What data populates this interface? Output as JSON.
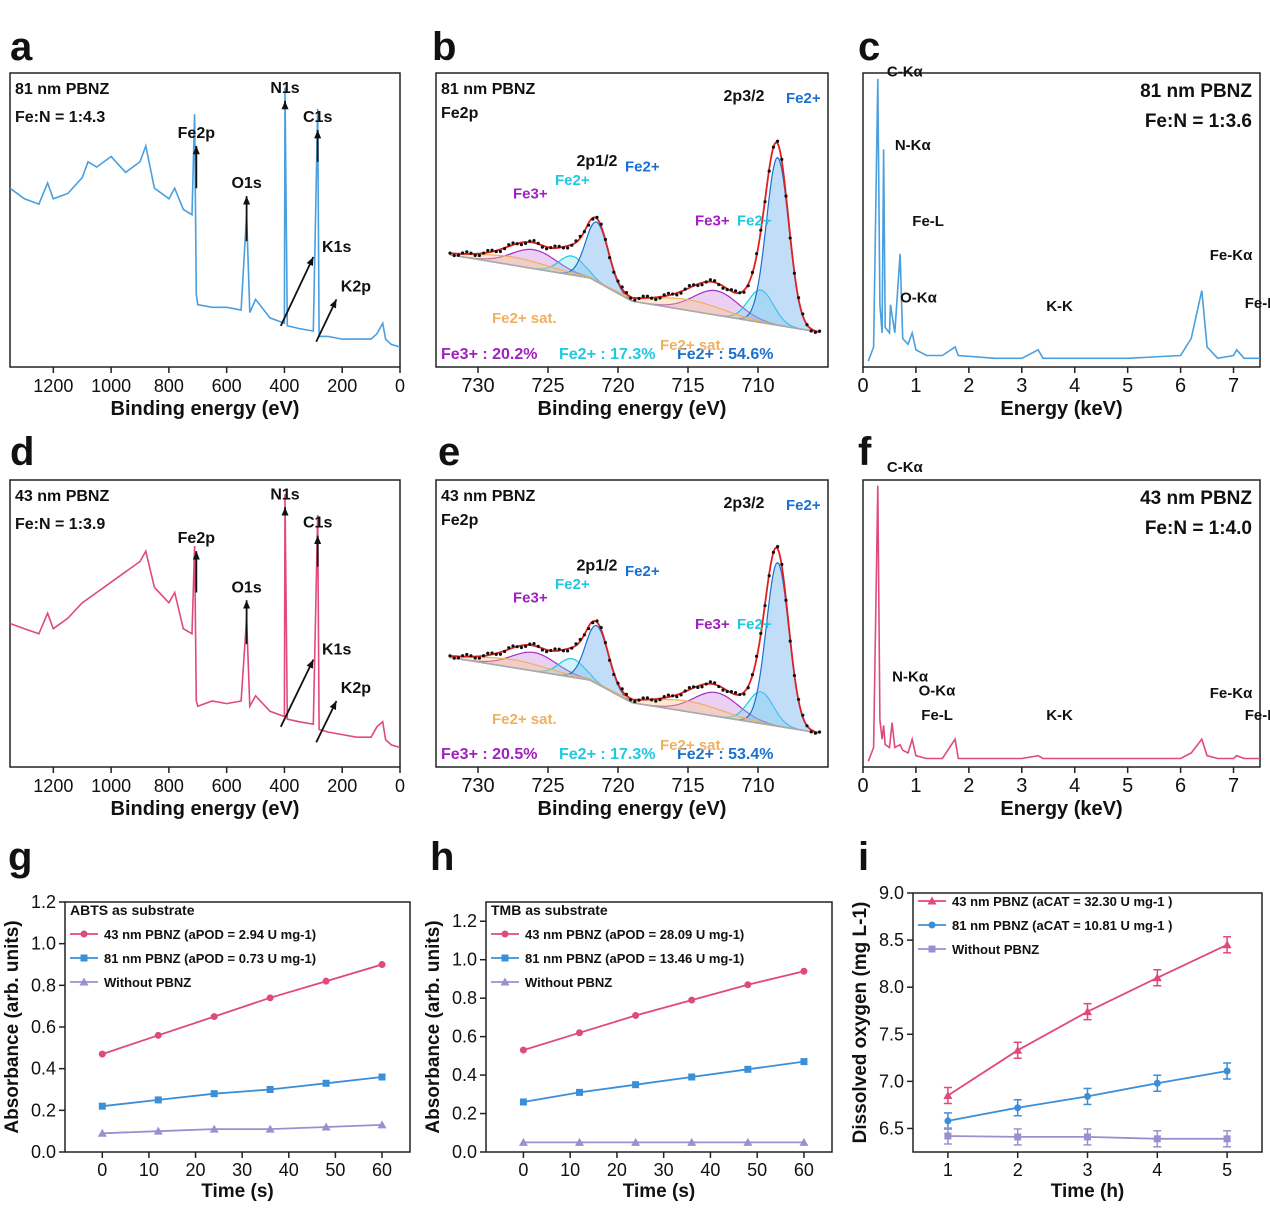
{
  "chart_data": [
    {
      "panel": "a",
      "type": "line",
      "title": "81 nm PBNZ",
      "subtitle": "Fe:N = 1:4.3",
      "xlabel": "Binding energy (eV)",
      "ylabel": "",
      "xlim": [
        1350,
        0
      ],
      "reversed_x": true,
      "xticks": [
        1200,
        1000,
        800,
        600,
        400,
        200,
        0
      ],
      "color": "#4a9fdf",
      "series": [
        {
          "name": "XPS survey",
          "x": [
            1350,
            1300,
            1250,
            1220,
            1200,
            1150,
            1100,
            1080,
            1050,
            1000,
            950,
            900,
            880,
            850,
            800,
            780,
            750,
            720,
            711,
            705,
            700,
            650,
            600,
            550,
            531,
            520,
            500,
            450,
            400,
            398,
            390,
            350,
            300,
            285,
            280,
            250,
            200,
            150,
            100,
            80,
            60,
            50,
            30,
            0
          ],
          "y": [
            0.62,
            0.58,
            0.56,
            0.64,
            0.58,
            0.6,
            0.66,
            0.72,
            0.7,
            0.74,
            0.68,
            0.72,
            0.78,
            0.62,
            0.58,
            0.62,
            0.54,
            0.52,
            0.9,
            0.22,
            0.18,
            0.17,
            0.17,
            0.16,
            0.52,
            0.15,
            0.2,
            0.13,
            0.11,
            1.0,
            0.1,
            0.09,
            0.08,
            0.92,
            0.06,
            0.06,
            0.05,
            0.05,
            0.05,
            0.07,
            0.11,
            0.05,
            0.03,
            0.02
          ]
        }
      ],
      "annotations": [
        "Fe2p",
        "O1s",
        "N1s",
        "C1s",
        "K1s",
        "K2p"
      ]
    },
    {
      "panel": "b",
      "type": "line",
      "title": "81 nm PBNZ",
      "subtitle": "Fe2p",
      "xlabel": "Binding energy (eV)",
      "xlim": [
        733,
        705
      ],
      "reversed_x": true,
      "xticks": [
        730,
        725,
        720,
        715,
        710
      ],
      "series": [
        {
          "name": "Experimental",
          "x": [
            733,
            730,
            727,
            725,
            723,
            721.5,
            720,
            718,
            716,
            714,
            712.5,
            711,
            709.5,
            708.5,
            707.5,
            706,
            705
          ],
          "y": [
            0.38,
            0.37,
            0.37,
            0.38,
            0.42,
            0.58,
            0.36,
            0.28,
            0.26,
            0.3,
            0.36,
            0.34,
            0.5,
            1.0,
            0.4,
            0.1,
            0.08
          ]
        },
        {
          "name": "Fe3+",
          "peaks": [
            726,
            713
          ]
        },
        {
          "name": "Fe2+ (cyan)",
          "peaks": [
            723.5,
            710
          ]
        },
        {
          "name": "Fe2+ (blue)",
          "peaks": [
            721.5,
            708.5
          ]
        },
        {
          "name": "Fe2+ sat.",
          "peaks": [
            727,
            715
          ]
        }
      ],
      "annotations": [
        "2p1/2",
        "2p3/2",
        "Fe3+",
        "Fe2+",
        "Fe2+ sat."
      ],
      "composition": {
        "Fe3+": "20.2%",
        "Fe2+ (cyan)": "17.3%",
        "Fe2+ (blue)": "54.6%"
      }
    },
    {
      "panel": "c",
      "type": "line",
      "title": "81 nm PBNZ",
      "subtitle": "Fe:N = 1:3.6",
      "xlabel": "Energy (keV)",
      "xlim": [
        0,
        7.5
      ],
      "xticks": [
        0,
        1,
        2,
        3,
        4,
        5,
        6,
        7
      ],
      "color": "#4a9fdf",
      "series": [
        {
          "name": "EDS",
          "x": [
            0.1,
            0.2,
            0.28,
            0.32,
            0.36,
            0.39,
            0.42,
            0.5,
            0.52,
            0.6,
            0.7,
            0.75,
            0.85,
            0.93,
            1.0,
            1.2,
            1.5,
            1.74,
            1.8,
            2.5,
            3.0,
            3.31,
            3.4,
            4,
            5,
            6,
            6.2,
            6.4,
            6.5,
            6.7,
            7.0,
            7.06,
            7.2,
            7.5
          ],
          "y": [
            0,
            0.05,
            1.0,
            0.2,
            0.1,
            0.75,
            0.12,
            0.1,
            0.2,
            0.1,
            0.38,
            0.08,
            0.06,
            0.1,
            0.04,
            0.02,
            0.02,
            0.05,
            0.02,
            0.01,
            0.01,
            0.04,
            0.01,
            0.01,
            0.01,
            0.02,
            0.08,
            0.25,
            0.05,
            0.01,
            0.02,
            0.04,
            0.01,
            0.01
          ]
        }
      ],
      "annotations": [
        "C-Kα",
        "N-Kα",
        "Fe-L",
        "O-Kα",
        "K-K",
        "Fe-Kα",
        "Fe-Kβ"
      ]
    },
    {
      "panel": "d",
      "type": "line",
      "title": "43 nm PBNZ",
      "subtitle": "Fe:N = 1:3.9",
      "xlabel": "Binding energy (eV)",
      "xlim": [
        1350,
        0
      ],
      "reversed_x": true,
      "xticks": [
        1200,
        1000,
        800,
        600,
        400,
        200,
        0
      ],
      "color": "#e04a7a",
      "series": [
        {
          "name": "XPS survey",
          "x": [
            1350,
            1300,
            1250,
            1220,
            1200,
            1150,
            1100,
            1050,
            1000,
            950,
            900,
            880,
            850,
            800,
            780,
            750,
            720,
            711,
            705,
            700,
            650,
            600,
            550,
            531,
            520,
            500,
            450,
            400,
            398,
            390,
            350,
            300,
            285,
            280,
            250,
            200,
            150,
            100,
            80,
            60,
            50,
            30,
            0
          ],
          "y": [
            0.5,
            0.48,
            0.46,
            0.54,
            0.48,
            0.52,
            0.58,
            0.62,
            0.66,
            0.7,
            0.74,
            0.78,
            0.64,
            0.58,
            0.62,
            0.48,
            0.46,
            0.8,
            0.2,
            0.18,
            0.2,
            0.19,
            0.2,
            0.52,
            0.18,
            0.22,
            0.16,
            0.14,
            1.0,
            0.13,
            0.12,
            0.11,
            0.92,
            0.09,
            0.08,
            0.07,
            0.06,
            0.06,
            0.1,
            0.12,
            0.05,
            0.03,
            0.02
          ]
        }
      ],
      "annotations": [
        "Fe2p",
        "O1s",
        "N1s",
        "C1s",
        "K1s",
        "K2p"
      ]
    },
    {
      "panel": "e",
      "type": "line",
      "title": "43 nm PBNZ",
      "subtitle": "Fe2p",
      "xlabel": "Binding energy (eV)",
      "xlim": [
        733,
        705
      ],
      "reversed_x": true,
      "xticks": [
        730,
        725,
        720,
        715,
        710
      ],
      "series": [
        {
          "name": "Experimental",
          "x": [
            733,
            730,
            727,
            725,
            723,
            721.5,
            720,
            718,
            716,
            714,
            712.5,
            711,
            709.5,
            708.5,
            707.5,
            706,
            705
          ],
          "y": [
            0.38,
            0.37,
            0.37,
            0.38,
            0.42,
            0.6,
            0.36,
            0.28,
            0.26,
            0.3,
            0.36,
            0.34,
            0.5,
            1.0,
            0.4,
            0.1,
            0.08
          ]
        },
        {
          "name": "Fe3+",
          "peaks": [
            726,
            713
          ]
        },
        {
          "name": "Fe2+ (cyan)",
          "peaks": [
            723.5,
            710
          ]
        },
        {
          "name": "Fe2+ (blue)",
          "peaks": [
            721.5,
            708.5
          ]
        },
        {
          "name": "Fe2+ sat.",
          "peaks": [
            727,
            715
          ]
        }
      ],
      "annotations": [
        "2p1/2",
        "2p3/2",
        "Fe3+",
        "Fe2+",
        "Fe2+ sat."
      ],
      "composition": {
        "Fe3+": "20.5%",
        "Fe2+ (cyan)": "17.3%",
        "Fe2+ (blue)": "53.4%"
      }
    },
    {
      "panel": "f",
      "type": "line",
      "title": "43 nm PBNZ",
      "subtitle": "Fe:N = 1:4.0",
      "xlabel": "Energy (keV)",
      "xlim": [
        0,
        7.5
      ],
      "xticks": [
        0,
        1,
        2,
        3,
        4,
        5,
        6,
        7
      ],
      "color": "#e04a7a",
      "series": [
        {
          "name": "EDS",
          "x": [
            0.1,
            0.2,
            0.28,
            0.32,
            0.36,
            0.39,
            0.42,
            0.5,
            0.55,
            0.6,
            0.7,
            0.75,
            0.85,
            0.93,
            1.0,
            1.2,
            1.5,
            1.74,
            1.8,
            2.5,
            3.0,
            3.31,
            3.4,
            4,
            5,
            6,
            6.2,
            6.4,
            6.5,
            6.7,
            7.0,
            7.06,
            7.2,
            7.5
          ],
          "y": [
            0,
            0.05,
            1.0,
            0.15,
            0.08,
            0.13,
            0.06,
            0.05,
            0.14,
            0.05,
            0.06,
            0.04,
            0.03,
            0.08,
            0.02,
            0.01,
            0.01,
            0.08,
            0.01,
            0.01,
            0.01,
            0.02,
            0.01,
            0.01,
            0.01,
            0.01,
            0.03,
            0.08,
            0.02,
            0.01,
            0.01,
            0.02,
            0.01,
            0.01
          ]
        }
      ],
      "annotations": [
        "C-Kα",
        "N-Kα",
        "O-Kα",
        "Fe-L",
        "K-K",
        "Fe-Kα",
        "Fe-Kβ"
      ]
    },
    {
      "panel": "g",
      "type": "line",
      "title": "ABTS as substrate",
      "xlabel": "Time (s)",
      "ylabel": "Absorbance (arb. units)",
      "xlim": [
        -8,
        66
      ],
      "ylim": [
        0,
        1.2
      ],
      "xticks": [
        0,
        10,
        20,
        30,
        40,
        50,
        60
      ],
      "yticks": [
        0,
        0.2,
        0.4,
        0.6,
        0.8,
        1.0,
        1.2
      ],
      "x": [
        0,
        12,
        24,
        36,
        48,
        60
      ],
      "series": [
        {
          "name": "43 nm PBNZ (aPOD = 2.94 U mg-1)",
          "color": "#e04a7a",
          "marker": "circle",
          "values": [
            0.47,
            0.56,
            0.65,
            0.74,
            0.82,
            0.9
          ]
        },
        {
          "name": "81 nm PBNZ (aPOD = 0.73 U mg-1)",
          "color": "#3a8fd8",
          "marker": "square",
          "values": [
            0.22,
            0.25,
            0.28,
            0.3,
            0.33,
            0.36
          ]
        },
        {
          "name": "Without PBNZ",
          "color": "#9a90d0",
          "marker": "triangle",
          "values": [
            0.09,
            0.1,
            0.11,
            0.11,
            0.12,
            0.13
          ]
        }
      ],
      "legend": "top-left"
    },
    {
      "panel": "h",
      "type": "line",
      "title": "TMB as substrate",
      "xlabel": "Time (s)",
      "ylabel": "Absorbance (arb. units)",
      "xlim": [
        -8,
        66
      ],
      "ylim": [
        0,
        1.3
      ],
      "xticks": [
        0,
        10,
        20,
        30,
        40,
        50,
        60
      ],
      "yticks": [
        0,
        0.2,
        0.4,
        0.6,
        0.8,
        1.0,
        1.2
      ],
      "x": [
        0,
        12,
        24,
        36,
        48,
        60
      ],
      "series": [
        {
          "name": "43 nm PBNZ (aPOD = 28.09 U mg-1)",
          "color": "#e04a7a",
          "marker": "circle",
          "values": [
            0.53,
            0.62,
            0.71,
            0.79,
            0.87,
            0.94
          ]
        },
        {
          "name": "81 nm PBNZ (aPOD = 13.46 U mg-1)",
          "color": "#3a8fd8",
          "marker": "square",
          "values": [
            0.26,
            0.31,
            0.35,
            0.39,
            0.43,
            0.47
          ]
        },
        {
          "name": "Without PBNZ",
          "color": "#9a90d0",
          "marker": "triangle",
          "values": [
            0.05,
            0.05,
            0.05,
            0.05,
            0.05,
            0.05
          ]
        }
      ],
      "legend": "top-left"
    },
    {
      "panel": "i",
      "type": "line",
      "xlabel": "Time (h)",
      "ylabel": "Dissolved oxygen (mg L-1)",
      "xlim": [
        0.5,
        5.5
      ],
      "ylim": [
        6.25,
        9.0
      ],
      "xticks": [
        1,
        2,
        3,
        4,
        5
      ],
      "yticks": [
        6.5,
        7.0,
        7.5,
        8.0,
        8.5,
        9.0
      ],
      "x": [
        1,
        2,
        3,
        4,
        5
      ],
      "series": [
        {
          "name": "43 nm PBNZ (aCAT = 32.30 U mg-1 )",
          "color": "#e04a7a",
          "marker": "triangle",
          "values": [
            6.85,
            7.33,
            7.74,
            8.1,
            8.45
          ]
        },
        {
          "name": "81 nm PBNZ (aCAT = 10.81 U mg-1 )",
          "color": "#3a8fd8",
          "marker": "circle",
          "values": [
            6.58,
            6.72,
            6.84,
            6.98,
            7.11
          ]
        },
        {
          "name": "Without PBNZ",
          "color": "#9a90d0",
          "marker": "square",
          "values": [
            6.42,
            6.41,
            6.41,
            6.39,
            6.39
          ]
        }
      ],
      "legend": "top-left"
    }
  ],
  "labels": {
    "panel_letters": [
      "a",
      "b",
      "c",
      "d",
      "e",
      "f",
      "g",
      "h",
      "i"
    ]
  }
}
